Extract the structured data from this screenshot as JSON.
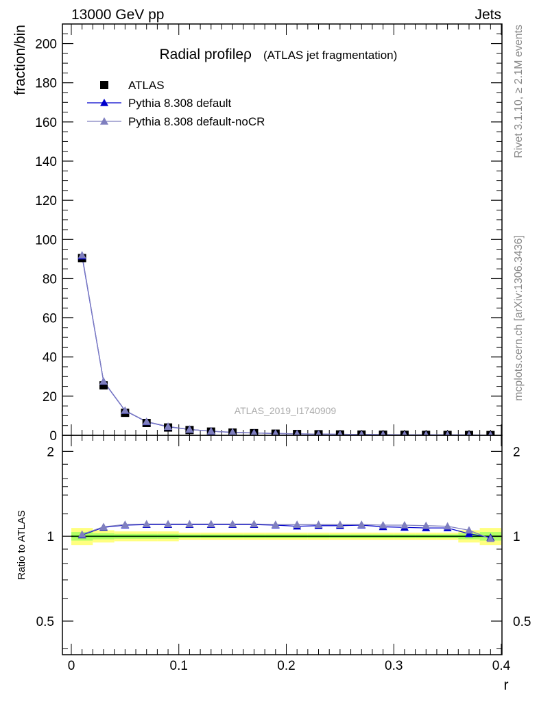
{
  "header": {
    "left": "13000 GeV pp",
    "right": "Jets"
  },
  "side_text": {
    "rivet": "Rivet 3.1.10, ≥ 2.1M events",
    "mcplots": "mcplots.cern.ch [arXiv:1306.3436]"
  },
  "watermark": "ATLAS_2019_I1740909",
  "chart_data": [
    {
      "type": "scatter",
      "title": "Radial profileρ",
      "subtitle": "(ATLAS jet fragmentation)",
      "xlabel": "r",
      "ylabel": "fraction/bin",
      "xlim": [
        -0.01,
        0.4
      ],
      "ylim": [
        0,
        210
      ],
      "x_ticks": [
        0,
        0.1,
        0.2,
        0.3,
        0.4
      ],
      "x_tick_labels": [
        "0",
        "0.1",
        "0.2",
        "0.3",
        "0.4"
      ],
      "y_ticks": [
        0,
        20,
        40,
        60,
        80,
        100,
        120,
        140,
        160,
        180,
        200
      ],
      "y_tick_labels": [
        "0",
        "20",
        "40",
        "60",
        "80",
        "100",
        "120",
        "140",
        "160",
        "180",
        "200"
      ],
      "legend_position": "top-left",
      "x": [
        0.01,
        0.03,
        0.05,
        0.07,
        0.09,
        0.11,
        0.13,
        0.15,
        0.17,
        0.19,
        0.21,
        0.23,
        0.25,
        0.27,
        0.29,
        0.31,
        0.33,
        0.35,
        0.37,
        0.39
      ],
      "series": [
        {
          "name": "ATLAS",
          "marker": "square",
          "color": "#000000",
          "values": [
            90.5,
            25.5,
            11.5,
            6.3,
            4.0,
            2.7,
            1.9,
            1.4,
            1.1,
            0.85,
            0.68,
            0.55,
            0.45,
            0.37,
            0.31,
            0.26,
            0.22,
            0.19,
            0.16,
            0.14
          ]
        },
        {
          "name": "Pythia 8.308 default",
          "marker": "triangle",
          "color": "#0000cc",
          "values": [
            91.5,
            27.5,
            12.6,
            6.9,
            4.4,
            3.0,
            2.1,
            1.5,
            1.2,
            0.94,
            0.75,
            0.61,
            0.5,
            0.41,
            0.34,
            0.29,
            0.24,
            0.2,
            0.17,
            0.14
          ]
        },
        {
          "name": "Pythia 8.308 default-noCR",
          "marker": "triangle",
          "color": "#7f7fbf",
          "values": [
            92.0,
            27.6,
            12.7,
            7.0,
            4.5,
            3.0,
            2.1,
            1.6,
            1.2,
            0.95,
            0.76,
            0.62,
            0.5,
            0.42,
            0.35,
            0.29,
            0.25,
            0.21,
            0.17,
            0.14
          ]
        }
      ]
    },
    {
      "type": "scatter",
      "xlabel": "r",
      "ylabel": "Ratio to ATLAS",
      "xlim": [
        -0.01,
        0.4
      ],
      "ylim": [
        0.38,
        2.28
      ],
      "y_scale": "log",
      "x_ticks": [
        0,
        0.1,
        0.2,
        0.3,
        0.4
      ],
      "x_tick_labels": [
        "0",
        "0.1",
        "0.2",
        "0.3",
        "0.4"
      ],
      "y_ticks": [
        0.5,
        1,
        2
      ],
      "y_tick_labels": [
        "0.5",
        "1",
        "2"
      ],
      "reference": {
        "value": 1,
        "color": "#00aa00"
      },
      "bands": [
        {
          "color": "#ffff80",
          "x_low": [
            0.0,
            0.02,
            0.04,
            0.06,
            0.08,
            0.1,
            0.12,
            0.14,
            0.16,
            0.18,
            0.2,
            0.22,
            0.24,
            0.26,
            0.28,
            0.3,
            0.32,
            0.34,
            0.36,
            0.38
          ],
          "x_high": [
            0.02,
            0.04,
            0.06,
            0.08,
            0.1,
            0.12,
            0.14,
            0.16,
            0.18,
            0.2,
            0.22,
            0.24,
            0.26,
            0.28,
            0.3,
            0.32,
            0.34,
            0.36,
            0.38,
            0.4
          ],
          "low": [
            0.93,
            0.95,
            0.96,
            0.96,
            0.96,
            0.97,
            0.97,
            0.97,
            0.97,
            0.97,
            0.97,
            0.97,
            0.97,
            0.97,
            0.97,
            0.97,
            0.97,
            0.97,
            0.95,
            0.93
          ],
          "high": [
            1.07,
            1.05,
            1.04,
            1.04,
            1.04,
            1.03,
            1.03,
            1.03,
            1.03,
            1.03,
            1.03,
            1.03,
            1.03,
            1.03,
            1.03,
            1.03,
            1.03,
            1.03,
            1.05,
            1.07
          ]
        },
        {
          "color": "#b2ff66",
          "x_low": [
            0.0,
            0.02,
            0.04,
            0.06,
            0.08,
            0.1,
            0.12,
            0.14,
            0.16,
            0.18,
            0.2,
            0.22,
            0.24,
            0.26,
            0.28,
            0.3,
            0.32,
            0.34,
            0.36,
            0.38
          ],
          "x_high": [
            0.02,
            0.04,
            0.06,
            0.08,
            0.1,
            0.12,
            0.14,
            0.16,
            0.18,
            0.2,
            0.22,
            0.24,
            0.26,
            0.28,
            0.3,
            0.32,
            0.34,
            0.36,
            0.38,
            0.4
          ],
          "low": [
            0.965,
            0.975,
            0.98,
            0.98,
            0.98,
            0.985,
            0.985,
            0.985,
            0.985,
            0.985,
            0.985,
            0.985,
            0.985,
            0.985,
            0.985,
            0.985,
            0.985,
            0.985,
            0.975,
            0.965
          ],
          "high": [
            1.035,
            1.025,
            1.02,
            1.02,
            1.02,
            1.015,
            1.015,
            1.015,
            1.015,
            1.015,
            1.015,
            1.015,
            1.015,
            1.015,
            1.015,
            1.015,
            1.015,
            1.015,
            1.025,
            1.035
          ]
        }
      ],
      "x": [
        0.01,
        0.03,
        0.05,
        0.07,
        0.09,
        0.11,
        0.13,
        0.15,
        0.17,
        0.19,
        0.21,
        0.23,
        0.25,
        0.27,
        0.29,
        0.31,
        0.33,
        0.35,
        0.37,
        0.39
      ],
      "series": [
        {
          "name": "Pythia 8.308 default",
          "marker": "triangle",
          "color": "#0000cc",
          "values": [
            1.01,
            1.075,
            1.095,
            1.1,
            1.1,
            1.1,
            1.1,
            1.1,
            1.1,
            1.095,
            1.085,
            1.09,
            1.09,
            1.095,
            1.08,
            1.075,
            1.07,
            1.07,
            1.02,
            0.99
          ]
        },
        {
          "name": "Pythia 8.308 default-noCR",
          "marker": "triangle",
          "color": "#7f7fbf",
          "values": [
            1.015,
            1.08,
            1.1,
            1.105,
            1.105,
            1.105,
            1.105,
            1.105,
            1.105,
            1.1,
            1.1,
            1.1,
            1.1,
            1.1,
            1.095,
            1.095,
            1.09,
            1.085,
            1.05,
            0.98
          ]
        }
      ]
    }
  ]
}
